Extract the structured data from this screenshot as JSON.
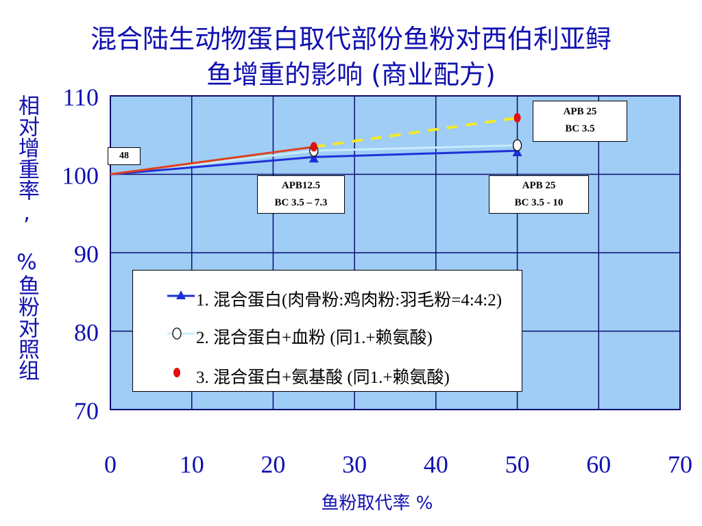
{
  "title": {
    "line1": "混合陆生动物蛋白取代部份鱼粉对西伯利亚鲟",
    "line2": "鱼增重的影响 (商业配方)"
  },
  "colors": {
    "plot_bg": "#9fcdf5",
    "grid": "#0a0a6e",
    "axis_text": "#1010b0",
    "series1": "#1e2fd8",
    "series2": "#c8ecff",
    "series3_solid": "#e0401c",
    "series3_dashed": "#f4ea28",
    "red_marker": "#e01010"
  },
  "chart_data": {
    "type": "line",
    "title": "混合陆生动物蛋白取代部份鱼粉对西伯利亚鲟鱼增重的影响 (商业配方)",
    "xlabel": "鱼粉取代率 %",
    "ylabel": "相对增重率, %鱼粉对照组",
    "xlim": [
      0,
      70
    ],
    "ylim": [
      70,
      110
    ],
    "xticks": [
      "0",
      "10",
      "20",
      "30",
      "40",
      "50",
      "60",
      "70"
    ],
    "yticks": [
      "70",
      "80",
      "90",
      "100",
      "110"
    ],
    "grid": true,
    "legend_position": "center",
    "series": [
      {
        "name": "1. 混合蛋白(肉骨粉:鸡肉粉:羽毛粉=4:4:2)",
        "x": [
          0,
          25,
          50
        ],
        "y": [
          100,
          102.2,
          103
        ],
        "marker": "triangle",
        "line": "solid"
      },
      {
        "name": "2.  混合蛋白+血粉 (同1.+赖氨酸)",
        "x": [
          0,
          25,
          50
        ],
        "y": [
          100,
          103,
          103.7
        ],
        "marker": "open-circle",
        "line": "solid"
      },
      {
        "name": "3.  混合蛋白+氨基酸 (同1.+赖氨酸)",
        "x": [
          0,
          25,
          50
        ],
        "y": [
          100,
          103.5,
          107.2
        ],
        "marker": "red-dot",
        "line": "solid-then-dashed"
      }
    ],
    "annotations": [
      {
        "id": "a48",
        "text": "48"
      },
      {
        "id": "a1",
        "line1": "APB12.5",
        "line2": "BC 3.5 – 7.3"
      },
      {
        "id": "a2",
        "line1": "APB 25",
        "line2": "BC 3.5 - 10"
      },
      {
        "id": "a3",
        "line1": "APB 25",
        "line2": "BC 3.5"
      }
    ]
  }
}
